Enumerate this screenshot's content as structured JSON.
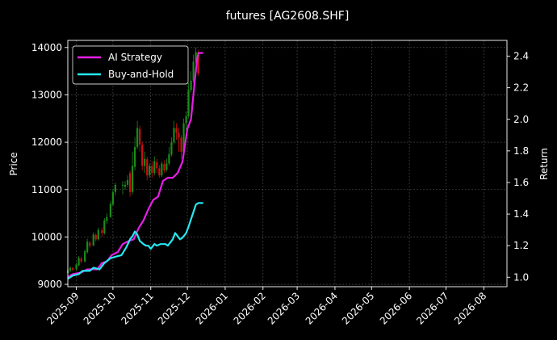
{
  "chart_data": {
    "type": "line",
    "title": "futures [AG2608.SHF]",
    "xlabel": "",
    "ylabel": "Price",
    "ylabel_right": "Return",
    "x_ticks": [
      "2025-09",
      "2025-10",
      "2025-11",
      "2025-12",
      "2026-01",
      "2026-02",
      "2026-03",
      "2026-04",
      "2026-05",
      "2026-06",
      "2026-07",
      "2026-08"
    ],
    "xlim": [
      "2025-08-25",
      "2026-08-20"
    ],
    "ylim_left": [
      8950,
      14150
    ],
    "ylim_right": [
      0.94,
      2.5
    ],
    "y_ticks_left": [
      9000,
      10000,
      11000,
      12000,
      13000,
      14000
    ],
    "y_ticks_right": [
      1.0,
      1.2,
      1.4,
      1.6,
      1.8,
      2.0,
      2.2,
      2.4
    ],
    "grid": true,
    "legend_position": "top-left",
    "colors": {
      "background": "#000000",
      "ai": "#e61fe6",
      "bh": "#26e6f2",
      "up": "#1a8c1a",
      "down": "#cc1111",
      "grid": "#555555"
    },
    "series": [
      {
        "name": "AI Strategy",
        "axis": "right",
        "points": [
          [
            "2025-08-25",
            1.0
          ],
          [
            "2025-08-29",
            1.02
          ],
          [
            "2025-09-05",
            1.03
          ],
          [
            "2025-09-10",
            1.05
          ],
          [
            "2025-09-18",
            1.05
          ],
          [
            "2025-09-22",
            1.09
          ],
          [
            "2025-09-26",
            1.1
          ],
          [
            "2025-09-30",
            1.14
          ],
          [
            "2025-10-05",
            1.16
          ],
          [
            "2025-10-09",
            1.21
          ],
          [
            "2025-10-14",
            1.23
          ],
          [
            "2025-10-18",
            1.24
          ],
          [
            "2025-10-22",
            1.31
          ],
          [
            "2025-10-26",
            1.36
          ],
          [
            "2025-10-30",
            1.43
          ],
          [
            "2025-11-03",
            1.49
          ],
          [
            "2025-11-07",
            1.51
          ],
          [
            "2025-11-11",
            1.61
          ],
          [
            "2025-11-15",
            1.63
          ],
          [
            "2025-11-19",
            1.63
          ],
          [
            "2025-11-23",
            1.66
          ],
          [
            "2025-11-27",
            1.73
          ],
          [
            "2025-12-01",
            1.94
          ],
          [
            "2025-12-04",
            2.0
          ],
          [
            "2025-12-07",
            2.24
          ],
          [
            "2025-12-09",
            2.38
          ],
          [
            "2025-12-10",
            2.42
          ],
          [
            "2025-12-14",
            2.42
          ]
        ]
      },
      {
        "name": "Buy-and-Hold",
        "axis": "right",
        "points": [
          [
            "2025-08-25",
            0.99
          ],
          [
            "2025-08-29",
            1.01
          ],
          [
            "2025-09-03",
            1.02
          ],
          [
            "2025-09-06",
            1.04
          ],
          [
            "2025-09-12",
            1.04
          ],
          [
            "2025-09-15",
            1.06
          ],
          [
            "2025-09-20",
            1.05
          ],
          [
            "2025-09-24",
            1.09
          ],
          [
            "2025-09-29",
            1.12
          ],
          [
            "2025-10-03",
            1.13
          ],
          [
            "2025-10-08",
            1.14
          ],
          [
            "2025-10-12",
            1.19
          ],
          [
            "2025-10-15",
            1.24
          ],
          [
            "2025-10-17",
            1.26
          ],
          [
            "2025-10-19",
            1.29
          ],
          [
            "2025-10-21",
            1.27
          ],
          [
            "2025-10-23",
            1.23
          ],
          [
            "2025-10-26",
            1.21
          ],
          [
            "2025-10-28",
            1.2
          ],
          [
            "2025-10-30",
            1.2
          ],
          [
            "2025-11-01",
            1.18
          ],
          [
            "2025-11-04",
            1.21
          ],
          [
            "2025-11-06",
            1.2
          ],
          [
            "2025-11-09",
            1.21
          ],
          [
            "2025-11-13",
            1.21
          ],
          [
            "2025-11-15",
            1.2
          ],
          [
            "2025-11-19",
            1.24
          ],
          [
            "2025-11-21",
            1.28
          ],
          [
            "2025-11-23",
            1.26
          ],
          [
            "2025-11-25",
            1.24
          ],
          [
            "2025-11-27",
            1.25
          ],
          [
            "2025-11-30",
            1.28
          ],
          [
            "2025-12-02",
            1.32
          ],
          [
            "2025-12-05",
            1.39
          ],
          [
            "2025-12-08",
            1.46
          ],
          [
            "2025-12-10",
            1.47
          ],
          [
            "2025-12-14",
            1.47
          ]
        ]
      }
    ],
    "candles": [
      [
        "2025-08-25",
        9240,
        9300,
        9220,
        9330
      ],
      [
        "2025-08-27",
        9290,
        9350,
        9260,
        9380
      ],
      [
        "2025-08-29",
        9340,
        9310,
        9280,
        9370
      ],
      [
        "2025-09-01",
        9320,
        9420,
        9300,
        9460
      ],
      [
        "2025-09-03",
        9400,
        9560,
        9380,
        9600
      ],
      [
        "2025-09-05",
        9540,
        9480,
        9440,
        9580
      ],
      [
        "2025-09-08",
        9480,
        9700,
        9460,
        9740
      ],
      [
        "2025-09-10",
        9680,
        9900,
        9650,
        9960
      ],
      [
        "2025-09-12",
        9880,
        9810,
        9760,
        9920
      ],
      [
        "2025-09-15",
        9820,
        10050,
        9800,
        10100
      ],
      [
        "2025-09-17",
        10040,
        9950,
        9900,
        10080
      ],
      [
        "2025-09-19",
        9950,
        10150,
        9920,
        10200
      ],
      [
        "2025-09-22",
        10140,
        10080,
        10000,
        10200
      ],
      [
        "2025-09-24",
        10080,
        10350,
        10050,
        10400
      ],
      [
        "2025-09-26",
        10340,
        10420,
        10280,
        10500
      ],
      [
        "2025-09-29",
        10420,
        10700,
        10400,
        10760
      ],
      [
        "2025-10-01",
        10680,
        10950,
        10650,
        11020
      ],
      [
        "2025-10-03",
        10950,
        11100,
        10880,
        11150
      ],
      [
        "2025-10-09",
        11100,
        11100,
        10900,
        11180
      ],
      [
        "2025-10-11",
        11060,
        11100,
        11000,
        11180
      ],
      [
        "2025-10-13",
        11100,
        11200,
        11050,
        11300
      ],
      [
        "2025-10-15",
        11350,
        10950,
        10850,
        11400
      ],
      [
        "2025-10-17",
        10950,
        11500,
        10900,
        11800
      ],
      [
        "2025-10-19",
        11480,
        11900,
        11400,
        12100
      ],
      [
        "2025-10-21",
        11900,
        12300,
        11850,
        12450
      ],
      [
        "2025-10-23",
        12280,
        11950,
        11800,
        12350
      ],
      [
        "2025-10-25",
        11950,
        11500,
        11400,
        12000
      ],
      [
        "2025-10-27",
        11500,
        11650,
        11350,
        11800
      ],
      [
        "2025-10-29",
        11640,
        11300,
        11200,
        11700
      ],
      [
        "2025-10-31",
        11300,
        11500,
        11250,
        11550
      ],
      [
        "2025-11-02",
        11500,
        11350,
        11250,
        11600
      ],
      [
        "2025-11-04",
        11350,
        11600,
        11300,
        11700
      ],
      [
        "2025-11-06",
        11580,
        11450,
        11350,
        11650
      ],
      [
        "2025-11-08",
        11450,
        11300,
        11250,
        11520
      ],
      [
        "2025-11-10",
        11300,
        11550,
        11260,
        11600
      ],
      [
        "2025-11-12",
        11540,
        11400,
        11350,
        11620
      ],
      [
        "2025-11-14",
        11420,
        11550,
        11380,
        11650
      ],
      [
        "2025-11-16",
        11550,
        11750,
        11500,
        11900
      ],
      [
        "2025-11-18",
        11740,
        12000,
        11700,
        12100
      ],
      [
        "2025-11-20",
        12000,
        12300,
        11950,
        12450
      ],
      [
        "2025-11-22",
        12300,
        12200,
        12050,
        12400
      ],
      [
        "2025-11-24",
        12200,
        12100,
        11800,
        12300
      ],
      [
        "2025-11-26",
        12100,
        11800,
        11650,
        12150
      ],
      [
        "2025-11-28",
        11800,
        12400,
        11750,
        12500
      ],
      [
        "2025-11-30",
        12400,
        12550,
        12250,
        12650
      ],
      [
        "2025-12-02",
        12550,
        13100,
        12500,
        13250
      ],
      [
        "2025-12-04",
        13100,
        13300,
        13050,
        13500
      ],
      [
        "2025-12-06",
        13300,
        13700,
        13250,
        13850
      ],
      [
        "2025-12-08",
        13700,
        13900,
        13650,
        14000
      ],
      [
        "2025-12-10",
        13900,
        13450,
        13400,
        13950
      ]
    ]
  }
}
